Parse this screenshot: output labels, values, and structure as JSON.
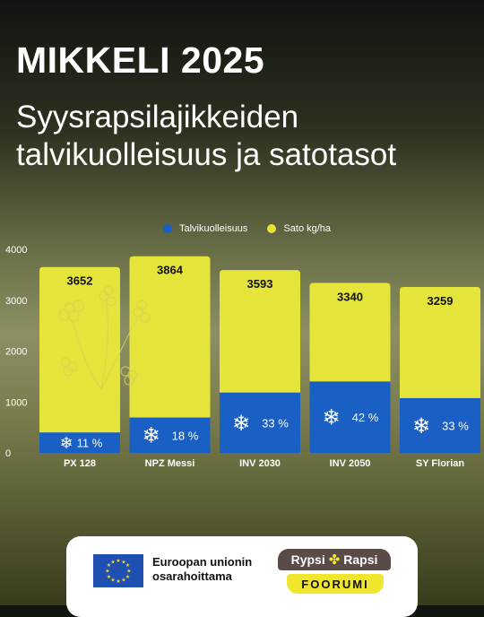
{
  "title": "MIKKELI 2025",
  "subtitle": "Syysrapsilajikkeiden talvikuolleisuus ja satotasot",
  "legend": [
    {
      "label": "Talvikuolleisuus",
      "color": "#1a5fc4"
    },
    {
      "label": "Sato kg/ha",
      "color": "#e5e43a"
    }
  ],
  "chart_data": {
    "type": "bar",
    "categories": [
      "PX 128",
      "NPZ Messi",
      "INV 2030",
      "INV 2050",
      "SY Florian"
    ],
    "series": [
      {
        "name": "Sato kg/ha",
        "values": [
          3652,
          3864,
          3593,
          3340,
          3259
        ],
        "color": "#e5e43a"
      },
      {
        "name": "Talvikuolleisuus",
        "values": [
          11,
          18,
          33,
          42,
          33
        ],
        "unit": "%",
        "color": "#1a5fc4"
      }
    ],
    "ylim": [
      0,
      4000
    ],
    "yticks": [
      0,
      1000,
      2000,
      3000,
      4000
    ],
    "grid": false,
    "legend_position": "top"
  },
  "footer": {
    "eu_line1": "Euroopan unionin",
    "eu_line2": "osarahoittama",
    "logo_left": "Rypsi",
    "logo_right": "Rapsi",
    "logo_bottom": "FOORUMI"
  }
}
